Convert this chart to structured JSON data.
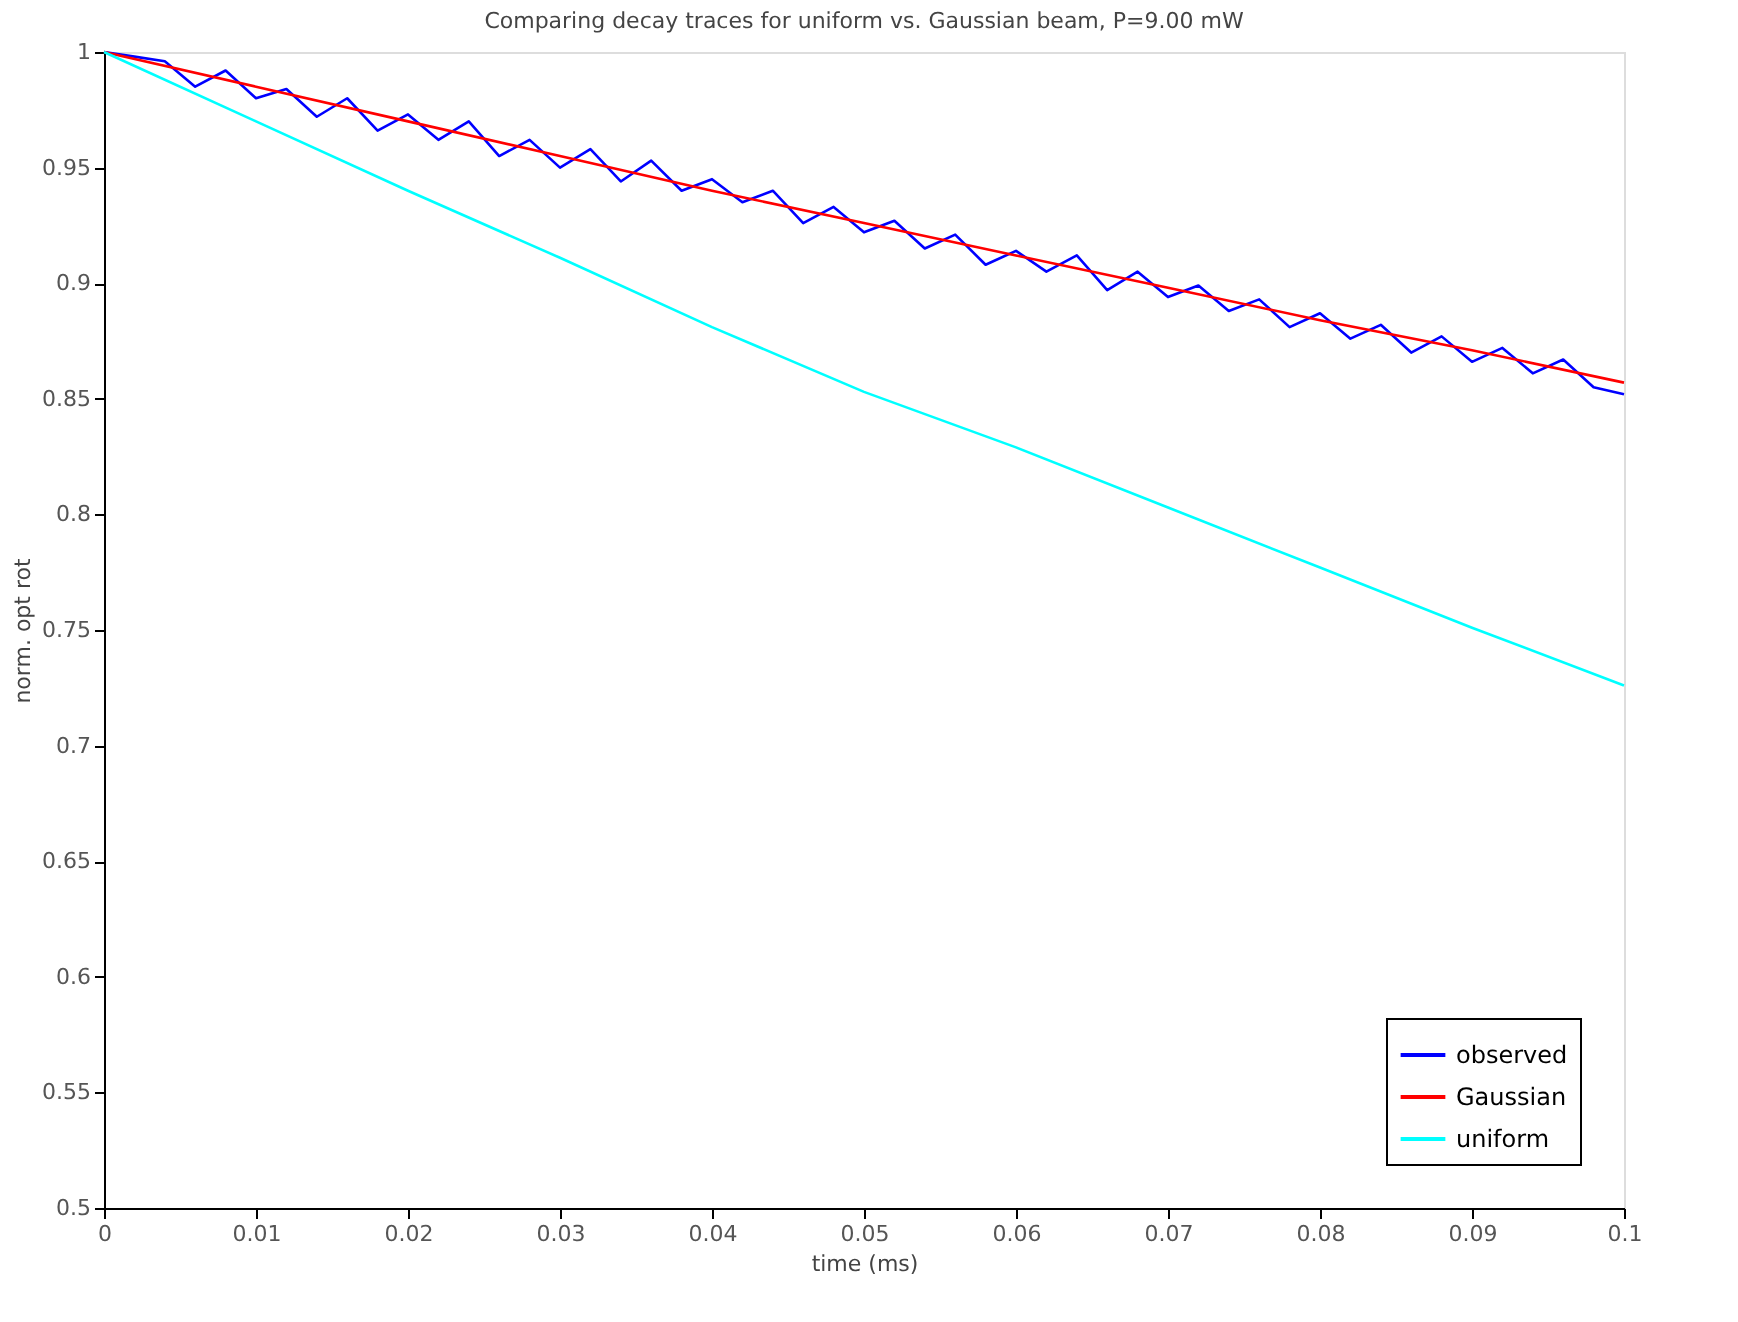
{
  "chart_data": {
    "type": "line",
    "title": "Comparing decay traces for uniform vs. Gaussian beam, P=9.00 mW",
    "xlabel": "time (ms)",
    "ylabel": "norm. opt rot",
    "xlim": [
      0,
      0.1
    ],
    "xticks": [
      0,
      0.01,
      0.02,
      0.03,
      0.04,
      0.05,
      0.06,
      0.07,
      0.08,
      0.09,
      0.1
    ],
    "ylim": [
      0.5,
      1
    ],
    "yticks": [
      0.5,
      0.55,
      0.6,
      0.65,
      0.7,
      0.75,
      0.8,
      0.85,
      0.9,
      0.95,
      1
    ],
    "grid": false,
    "legend": "bottom right",
    "marker": "none",
    "line_style": "solid",
    "series": [
      {
        "name": "observed",
        "color": "#0000ff",
        "x": [
          0,
          0.002,
          0.004,
          0.006,
          0.008,
          0.01,
          0.012,
          0.014,
          0.016,
          0.018,
          0.02,
          0.022,
          0.024,
          0.026,
          0.028,
          0.03,
          0.032,
          0.034,
          0.036,
          0.038,
          0.04,
          0.042,
          0.044,
          0.046,
          0.048,
          0.05,
          0.052,
          0.054,
          0.056,
          0.058,
          0.06,
          0.062,
          0.064,
          0.066,
          0.068,
          0.07,
          0.072,
          0.074,
          0.076,
          0.078,
          0.08,
          0.082,
          0.084,
          0.086,
          0.088,
          0.09,
          0.092,
          0.094,
          0.096,
          0.098,
          0.1
        ],
        "values": [
          1.0,
          0.998,
          0.996,
          0.985,
          0.992,
          0.98,
          0.984,
          0.972,
          0.98,
          0.966,
          0.973,
          0.962,
          0.97,
          0.955,
          0.962,
          0.95,
          0.958,
          0.944,
          0.953,
          0.94,
          0.945,
          0.935,
          0.94,
          0.926,
          0.933,
          0.922,
          0.927,
          0.915,
          0.921,
          0.908,
          0.914,
          0.905,
          0.912,
          0.897,
          0.905,
          0.894,
          0.899,
          0.888,
          0.893,
          0.881,
          0.887,
          0.876,
          0.882,
          0.87,
          0.877,
          0.866,
          0.872,
          0.861,
          0.867,
          0.855,
          0.852
        ]
      },
      {
        "name": "Gaussian",
        "color": "#ff0000",
        "x": [
          0,
          0.01,
          0.02,
          0.03,
          0.04,
          0.05,
          0.06,
          0.07,
          0.08,
          0.09,
          0.1
        ],
        "values": [
          1.0,
          0.985,
          0.97,
          0.955,
          0.94,
          0.926,
          0.912,
          0.898,
          0.884,
          0.871,
          0.857
        ]
      },
      {
        "name": "uniform",
        "color": "#00ffff",
        "x": [
          0,
          0.01,
          0.02,
          0.03,
          0.04,
          0.05,
          0.06,
          0.07,
          0.08,
          0.09,
          0.1
        ],
        "values": [
          1.0,
          0.97,
          0.94,
          0.911,
          0.881,
          0.853,
          0.829,
          0.803,
          0.777,
          0.751,
          0.726
        ]
      }
    ]
  }
}
